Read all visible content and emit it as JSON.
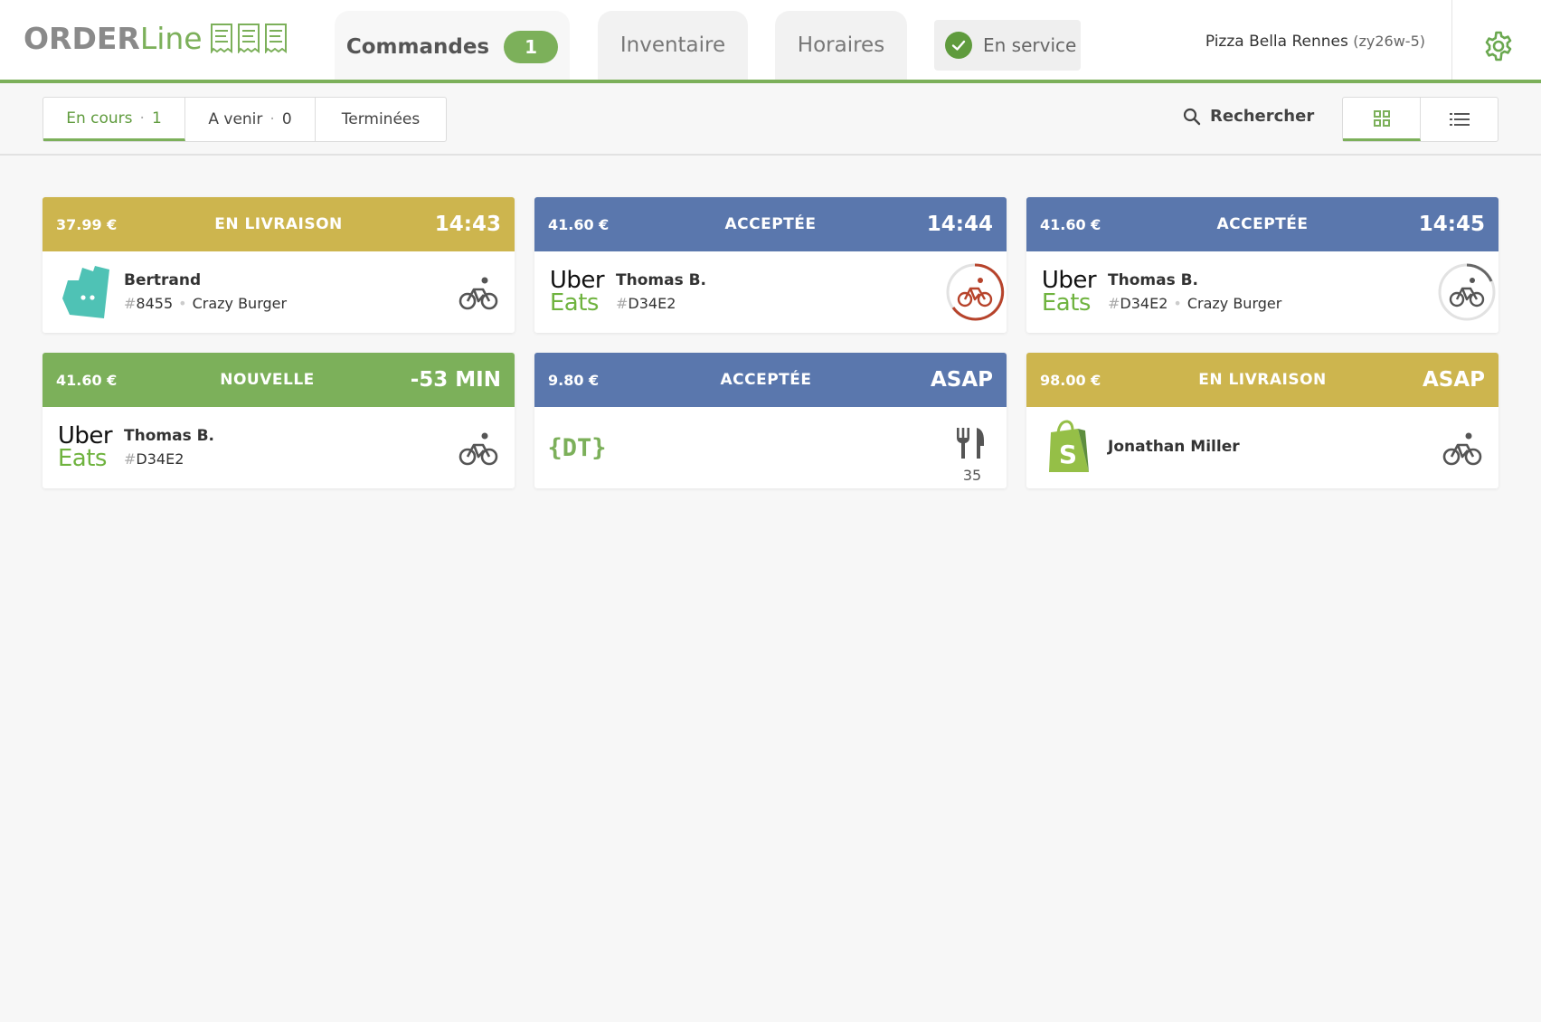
{
  "header": {
    "logo_order": "ORDER",
    "logo_line": "Line",
    "tabs": [
      {
        "label": "Commandes",
        "badge": "1"
      },
      {
        "label": "Inventaire"
      },
      {
        "label": "Horaires"
      }
    ],
    "service_status": "En service",
    "restaurant_name": "Pizza Bella Rennes",
    "restaurant_code": "(zy26w-5)"
  },
  "filters": {
    "items": [
      {
        "label": "En cours",
        "count": "1"
      },
      {
        "label": "A venir",
        "count": "0"
      },
      {
        "label": "Terminées"
      }
    ],
    "search_label": "Rechercher"
  },
  "colors": {
    "accent": "#7cb05a",
    "delivery": "#cdb54e",
    "accepted": "#5a77ad",
    "new": "#7cb05a",
    "timer_red": "#b7432b"
  },
  "orders": [
    {
      "price": "37.99 €",
      "status": "EN LIVRAISON",
      "time": "14:43",
      "platform": "deliveroo",
      "customer": "Bertrand",
      "hash": "#",
      "order_id": "8455",
      "brand": "Crazy Burger",
      "mode": "bike-icon"
    },
    {
      "price": "41.60 €",
      "status": "ACCEPTÉE",
      "time": "14:44",
      "platform": "ubereats",
      "customer": "Thomas B.",
      "hash": "#",
      "order_id": "D34E2",
      "mode": "bike-icon"
    },
    {
      "price": "41.60 €",
      "status": "ACCEPTÉE",
      "time": "14:45",
      "platform": "ubereats",
      "customer": "Thomas B.",
      "hash": "#",
      "order_id": "D34E2",
      "brand": "Crazy Burger",
      "mode": "bike-icon"
    },
    {
      "price": "41.60 €",
      "status": "NOUVELLE",
      "time": "-53 MIN",
      "platform": "ubereats",
      "customer": "Thomas B.",
      "hash": "#",
      "order_id": "D34E2",
      "mode": "bike-icon"
    },
    {
      "price": "9.80 €",
      "status": "ACCEPTÉE",
      "time": "ASAP",
      "platform": "dt",
      "platform_text": "{DT}",
      "mode": "fork-knife-icon",
      "table": "35"
    },
    {
      "price": "98.00 €",
      "status": "EN LIVRAISON",
      "time": "ASAP",
      "platform": "shopify",
      "customer": "Jonathan Miller",
      "mode": "bike-icon"
    }
  ],
  "uber_text": {
    "line1": "Uber",
    "line2": "Eats"
  }
}
